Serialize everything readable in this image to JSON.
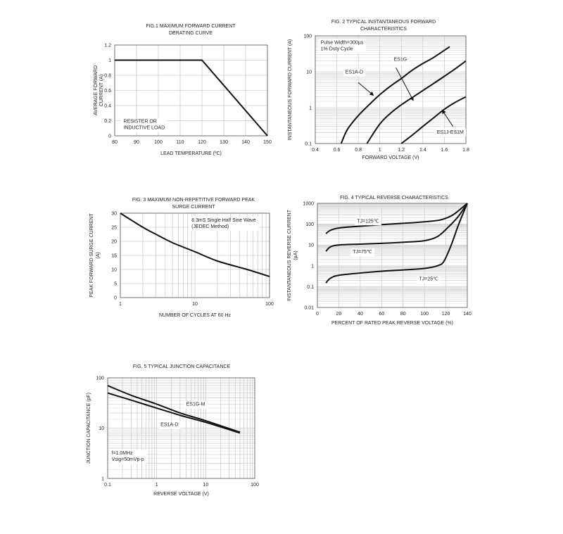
{
  "chart_data": [
    {
      "type": "line",
      "title": [
        "FIG.1 MAXIMUM FORWARD CURRENT",
        "DERATING CURVE"
      ],
      "xlabel": "LEAD TEMPERATURE (ºC)",
      "ylabel": [
        "AVERAGE FORWARD",
        "CURRENT (A)"
      ],
      "xscale": "linear",
      "yscale": "linear",
      "xlim": [
        80,
        150
      ],
      "ylim": [
        0,
        1.2
      ],
      "xticks": [
        80,
        90,
        100,
        110,
        120,
        130,
        140,
        150
      ],
      "xtick_labels": [
        "80",
        "90",
        "100",
        "110",
        "120",
        "130",
        "140",
        "150"
      ],
      "yticks": [
        0,
        0.2,
        0.4,
        0.6,
        0.8,
        1,
        1.2
      ],
      "ytick_labels": [
        "0",
        "0.2",
        "0.4",
        "0.6",
        "0.8",
        "1",
        "1.2"
      ],
      "grid": true,
      "series": [
        {
          "name": "derating",
          "straight": true,
          "points": [
            [
              80,
              1
            ],
            [
              120,
              1
            ],
            [
              150,
              0
            ]
          ]
        }
      ],
      "annotations": [
        {
          "text": [
            "RESISTER OR",
            "INDUCTIVE LOAD"
          ],
          "at": [
            84,
            0.17
          ]
        }
      ]
    },
    {
      "type": "line",
      "title": [
        "FIG. 2 TYPICAL INSTANTANEOUS FORWARD",
        "CHARACTERISTICS"
      ],
      "xlabel": "FORWARD VOLTAGE (V)",
      "ylabel": [
        "INSTANTANEOUS FORWARD CURRENT (A)"
      ],
      "xscale": "linear",
      "yscale": "log",
      "xlim": [
        0.4,
        1.8
      ],
      "ylim": [
        0.1,
        100
      ],
      "xticks": [
        0.4,
        0.6,
        0.8,
        1,
        1.2,
        1.4,
        1.6,
        1.8
      ],
      "xtick_labels": [
        "0.4",
        "0.6",
        "0.8",
        "1",
        "1.2",
        "1.4",
        "1.6",
        "1.8"
      ],
      "yticks": [
        0.1,
        1,
        10,
        100
      ],
      "ytick_labels": [
        "0.1",
        "1",
        "10",
        "100"
      ],
      "grid": true,
      "series": [
        {
          "name": "ES1A-D",
          "points": [
            [
              0.64,
              0.1
            ],
            [
              0.7,
              0.25
            ],
            [
              0.8,
              0.6
            ],
            [
              0.9,
              1.2
            ],
            [
              1.0,
              2.3
            ],
            [
              1.1,
              4
            ],
            [
              1.2,
              6.5
            ],
            [
              1.3,
              11
            ],
            [
              1.4,
              17
            ],
            [
              1.5,
              25
            ],
            [
              1.65,
              50
            ]
          ]
        },
        {
          "name": "ES1G",
          "points": [
            [
              0.88,
              0.1
            ],
            [
              1.0,
              0.35
            ],
            [
              1.1,
              0.7
            ],
            [
              1.2,
              1.2
            ],
            [
              1.3,
              1.9
            ],
            [
              1.4,
              3
            ],
            [
              1.5,
              4.7
            ],
            [
              1.6,
              7.5
            ],
            [
              1.7,
              12
            ],
            [
              1.8,
              20
            ]
          ]
        },
        {
          "name": "ES1J-ES1M",
          "points": [
            [
              1.2,
              0.1
            ],
            [
              1.3,
              0.17
            ],
            [
              1.4,
              0.3
            ],
            [
              1.5,
              0.52
            ],
            [
              1.6,
              0.9
            ],
            [
              1.7,
              1.4
            ],
            [
              1.8,
              2
            ]
          ]
        }
      ],
      "annotations": [
        {
          "text": [
            "Pulse Width=300µs",
            "1% Duty Cycle"
          ],
          "at": [
            0.45,
            60
          ]
        },
        {
          "text": [
            "ES1A-D"
          ],
          "at": [
            0.68,
            9
          ],
          "arrow": [
            [
              0.8,
              5
            ],
            [
              0.94,
              2.2
            ]
          ]
        },
        {
          "text": [
            "ES1G"
          ],
          "at": [
            1.13,
            20
          ],
          "arrow": [
            [
              1.15,
              13
            ],
            [
              1.31,
              1.6
            ]
          ]
        },
        {
          "text": [
            "ES1J-ES1M"
          ],
          "at": [
            1.53,
            0.19
          ],
          "arrow": [
            [
              1.68,
              0.3
            ],
            [
              1.58,
              0.85
            ]
          ]
        }
      ]
    },
    {
      "type": "line",
      "title": [
        "FIG. 3 MAXIMUM  NON-REPETITIVE FORWARD PEAK",
        "SURGE CURRENT"
      ],
      "xlabel": "NUMBER OF CYCLES AT 60 Hz",
      "ylabel": [
        "PEAK FORWARD SURGE CURRENT",
        "(A)"
      ],
      "xscale": "log",
      "yscale": "linear",
      "xlim": [
        1,
        100
      ],
      "ylim": [
        0,
        30
      ],
      "xticks": [
        1,
        10,
        100
      ],
      "xtick_labels": [
        "1",
        "10",
        "100"
      ],
      "yticks": [
        0,
        5,
        10,
        15,
        20,
        25,
        30
      ],
      "ytick_labels": [
        "0",
        "5",
        "10",
        "15",
        "20",
        "25",
        "30"
      ],
      "grid": true,
      "series": [
        {
          "name": "surge",
          "points": [
            [
              1,
              30
            ],
            [
              2,
              25
            ],
            [
              3,
              22.5
            ],
            [
              5,
              19.5
            ],
            [
              10,
              16.3
            ],
            [
              20,
              13
            ],
            [
              50,
              10
            ],
            [
              100,
              7.5
            ]
          ]
        }
      ],
      "annotations": [
        {
          "text": [
            "8.3mS Single Half Sine Wave",
            "(JEDEC Method)"
          ],
          "at": [
            9,
            27
          ]
        }
      ]
    },
    {
      "type": "line",
      "title": [
        "FIG. 4 TYPICAL REVERSE CHARACTERISTICS"
      ],
      "xlabel": "PERCENT OF RATED PEAK REVERSE VOLTAGE (%)",
      "ylabel": [
        "INSTANTANEOUS REVERSE CURRENT",
        "(µA)"
      ],
      "xscale": "linear",
      "yscale": "log",
      "xlim": [
        0,
        140
      ],
      "ylim": [
        0.01,
        1000
      ],
      "xticks": [
        0,
        20,
        40,
        60,
        80,
        100,
        120,
        140
      ],
      "xtick_labels": [
        "0",
        "20",
        "40",
        "60",
        "80",
        "100",
        "120",
        "140"
      ],
      "yticks": [
        0.01,
        0.1,
        1,
        10,
        100,
        1000
      ],
      "ytick_labels": [
        "0.01",
        "0.1",
        "1",
        "10",
        "100",
        "1000"
      ],
      "grid": true,
      "series": [
        {
          "name": "TJ=125℃",
          "points": [
            [
              8,
              35
            ],
            [
              12,
              50
            ],
            [
              20,
              65
            ],
            [
              40,
              80
            ],
            [
              60,
              95
            ],
            [
              80,
              110
            ],
            [
              100,
              130
            ],
            [
              115,
              160
            ],
            [
              125,
              250
            ],
            [
              132,
              450
            ],
            [
              140,
              1000
            ]
          ]
        },
        {
          "name": "TJ=75℃",
          "points": [
            [
              8,
              5
            ],
            [
              12,
              8
            ],
            [
              20,
              10
            ],
            [
              40,
              11
            ],
            [
              60,
              12
            ],
            [
              80,
              13.5
            ],
            [
              100,
              16
            ],
            [
              112,
              25
            ],
            [
              122,
              70
            ],
            [
              132,
              250
            ],
            [
              140,
              1000
            ]
          ]
        },
        {
          "name": "TJ=25℃",
          "points": [
            [
              8,
              0.15
            ],
            [
              12,
              0.25
            ],
            [
              20,
              0.35
            ],
            [
              40,
              0.45
            ],
            [
              60,
              0.55
            ],
            [
              80,
              0.63
            ],
            [
              100,
              0.75
            ],
            [
              112,
              1
            ],
            [
              118,
              1.6
            ],
            [
              125,
              10
            ],
            [
              132,
              100
            ],
            [
              140,
              1000
            ]
          ]
        }
      ],
      "annotations": [
        {
          "text": [
            "TJ=125℃"
          ],
          "at": [
            37,
            120
          ]
        },
        {
          "text": [
            "TJ=75℃"
          ],
          "at": [
            33,
            4
          ]
        },
        {
          "text": [
            "TJ=25℃"
          ],
          "at": [
            95,
            0.2
          ]
        }
      ]
    },
    {
      "type": "line",
      "title": [
        "FIG. 5 TYPICAL JUNCTION CAPACITANCE"
      ],
      "xlabel": "REVERSE VOLTAGE (V)",
      "ylabel": [
        "JUNCTION CAPACITANCE (pF)"
      ],
      "xscale": "log",
      "yscale": "log",
      "xlim": [
        0.1,
        100
      ],
      "ylim": [
        1,
        100
      ],
      "xticks": [
        0.1,
        1,
        10,
        100
      ],
      "xtick_labels": [
        "0.1",
        "1",
        "10",
        "100"
      ],
      "yticks": [
        1,
        10,
        100
      ],
      "ytick_labels": [
        "1",
        "10",
        "100"
      ],
      "grid": true,
      "series": [
        {
          "name": "ES1G-M",
          "points": [
            [
              0.1,
              70
            ],
            [
              0.3,
              45
            ],
            [
              1,
              30
            ],
            [
              3,
              20
            ],
            [
              10,
              14
            ],
            [
              50,
              8.3
            ]
          ]
        },
        {
          "name": "ES1A-D",
          "points": [
            [
              0.1,
              50
            ],
            [
              0.3,
              36
            ],
            [
              1,
              25
            ],
            [
              3,
              18
            ],
            [
              10,
              13
            ],
            [
              50,
              8
            ]
          ]
        }
      ],
      "annotations": [
        {
          "text": [
            "ES1G-M"
          ],
          "at": [
            4,
            28
          ]
        },
        {
          "text": [
            "ES1A-D"
          ],
          "at": [
            1.2,
            11
          ]
        },
        {
          "text": [
            "f=1.0MHz",
            "Vsig=50mVp-p"
          ],
          "at": [
            0.12,
            3
          ]
        }
      ]
    }
  ]
}
